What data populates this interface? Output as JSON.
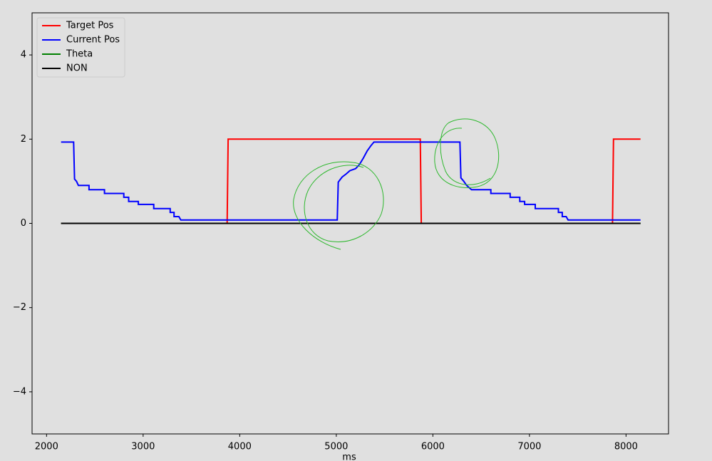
{
  "chart_data": {
    "type": "line",
    "xlabel": "ms",
    "xlim": [
      1850,
      8440
    ],
    "ylim": [
      -5,
      5
    ],
    "xticks": [
      2000,
      3000,
      4000,
      5000,
      6000,
      7000,
      8000
    ],
    "yticks": [
      {
        "value": -4,
        "label": "−4"
      },
      {
        "value": -2,
        "label": "−2"
      },
      0,
      2,
      4
    ],
    "legend": "upper-left",
    "series": [
      {
        "name": "Target Pos",
        "color": "#ff0000",
        "x": [
          2150,
          3870,
          3880,
          5870,
          5880,
          7860,
          7870,
          8150
        ],
        "values": [
          0,
          0,
          2,
          2,
          0,
          0,
          2,
          2
        ]
      },
      {
        "name": "Current Pos",
        "color": "#0000ff",
        "x": [
          2150,
          2280,
          2290,
          2310,
          2330,
          2440,
          2440,
          2600,
          2600,
          2800,
          2800,
          2850,
          2850,
          2950,
          2950,
          3110,
          3110,
          3280,
          3280,
          3320,
          3320,
          3370,
          3390,
          5010,
          5020,
          5060,
          5100,
          5140,
          5200,
          5240,
          5280,
          5320,
          5360,
          5390,
          6280,
          6290,
          6320,
          6350,
          6400,
          6600,
          6600,
          6800,
          6800,
          6900,
          6900,
          6950,
          6950,
          7060,
          7060,
          7300,
          7300,
          7340,
          7340,
          7380,
          7400,
          8150
        ],
        "values": [
          1.93,
          1.93,
          1.05,
          1.0,
          0.9,
          0.9,
          0.8,
          0.8,
          0.71,
          0.71,
          0.62,
          0.62,
          0.52,
          0.52,
          0.45,
          0.45,
          0.35,
          0.35,
          0.26,
          0.26,
          0.16,
          0.16,
          0.08,
          0.08,
          0.98,
          1.1,
          1.17,
          1.25,
          1.3,
          1.4,
          1.55,
          1.72,
          1.85,
          1.93,
          1.93,
          1.08,
          1.0,
          0.9,
          0.8,
          0.8,
          0.71,
          0.71,
          0.62,
          0.62,
          0.52,
          0.52,
          0.45,
          0.45,
          0.35,
          0.35,
          0.26,
          0.26,
          0.16,
          0.16,
          0.08,
          0.08
        ]
      },
      {
        "name": "Theta",
        "color": "#008000",
        "x": [
          2150,
          8150
        ],
        "values": [
          0,
          0
        ]
      },
      {
        "name": "NON",
        "color": "#000000",
        "x": [
          2150,
          8150
        ],
        "values": [
          0,
          0
        ]
      }
    ]
  }
}
